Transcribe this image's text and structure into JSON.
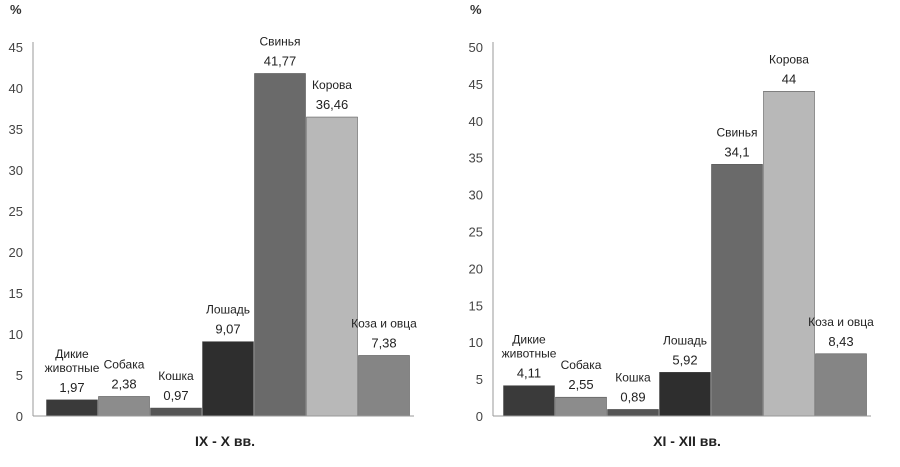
{
  "chart_data": [
    {
      "type": "bar",
      "title": "IX - X вв.",
      "ylabel": "%",
      "ylim": [
        0,
        45
      ],
      "yticks": [
        0,
        5,
        10,
        15,
        20,
        25,
        30,
        35,
        40,
        45
      ],
      "grid": false,
      "categories": [
        [
          "Дикие",
          "животные"
        ],
        [
          "Собака"
        ],
        [
          "Кошка"
        ],
        [
          "Лошадь"
        ],
        [
          "Свинья"
        ],
        [
          "Корова"
        ],
        [
          "Коза и овца"
        ]
      ],
      "values": [
        1.97,
        2.38,
        0.97,
        9.07,
        41.77,
        36.46,
        7.38
      ],
      "value_labels": [
        "1,97",
        "2,38",
        "0,97",
        "9,07",
        "41,77",
        "36,46",
        "7,38"
      ],
      "colors": [
        "#3a3a3a",
        "#8c8c8c",
        "#555555",
        "#2e2e2e",
        "#6a6a6a",
        "#b8b8b8",
        "#858585"
      ]
    },
    {
      "type": "bar",
      "title": "XI - XII вв.",
      "ylabel": "%",
      "ylim": [
        0,
        50
      ],
      "yticks": [
        0,
        5,
        10,
        15,
        20,
        25,
        30,
        35,
        40,
        45,
        50
      ],
      "grid": false,
      "categories": [
        [
          "Дикие",
          "животные"
        ],
        [
          "Собака"
        ],
        [
          "Кошка"
        ],
        [
          "Лошадь"
        ],
        [
          "Свинья"
        ],
        [
          "Корова"
        ],
        [
          "Коза и овца"
        ]
      ],
      "values": [
        4.11,
        2.55,
        0.89,
        5.92,
        34.1,
        44,
        8.43
      ],
      "value_labels": [
        "4,11",
        "2,55",
        "0,89",
        "5,92",
        "34,1",
        "44",
        "8,43"
      ],
      "colors": [
        "#3a3a3a",
        "#8c8c8c",
        "#555555",
        "#2e2e2e",
        "#6a6a6a",
        "#b8b8b8",
        "#858585"
      ]
    }
  ]
}
